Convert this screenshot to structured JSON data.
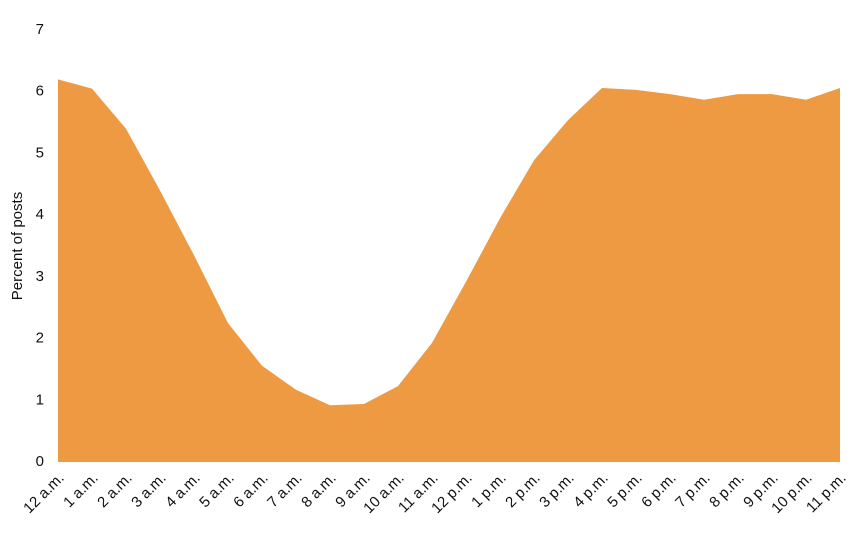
{
  "chart_data": {
    "type": "area",
    "y_label": "Percent of posts",
    "categories": [
      "12 a.m.",
      "1 a.m.",
      "2 a.m.",
      "3 a.m.",
      "4 a.m.",
      "5 a.m.",
      "6 a.m.",
      "7 a.m.",
      "8 a.m.",
      "9 a.m.",
      "10 a.m.",
      "11 a.m.",
      "12 p.m.",
      "1 p.m.",
      "2 p.m.",
      "3 p.m.",
      "4 p.m.",
      "5 p.m.",
      "6 p.m.",
      "7 p.m.",
      "8 p.m.",
      "9 p.m.",
      "10 p.m.",
      "11 p.m."
    ],
    "values": [
      6.2,
      6.05,
      5.4,
      4.4,
      3.35,
      2.25,
      1.56,
      1.17,
      0.92,
      0.94,
      1.23,
      1.93,
      2.92,
      3.95,
      4.89,
      5.54,
      6.06,
      6.03,
      5.96,
      5.87,
      5.96,
      5.96,
      5.87,
      6.06
    ],
    "color": "#ee9a42",
    "ylim": [
      0,
      7
    ],
    "yticks": [
      0,
      1,
      2,
      3,
      4,
      5,
      6,
      7
    ],
    "grid": false
  }
}
